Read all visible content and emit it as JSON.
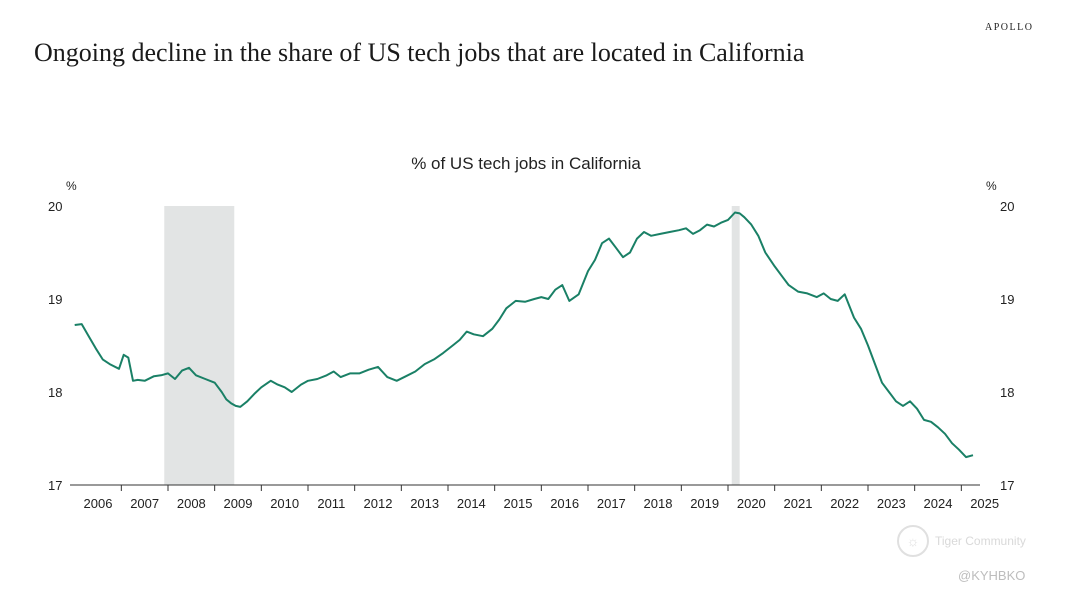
{
  "brand": "APOLLO",
  "headline": "Ongoing decline in the share of US tech jobs that are located in California",
  "watermark": "Tiger Community",
  "handle": "@KYHBKO",
  "chart_data": {
    "type": "line",
    "title": "% of US tech jobs in California",
    "ylabel_left": "%",
    "ylabel_right": "%",
    "ylim": [
      17,
      20
    ],
    "yticks": [
      17,
      18,
      19,
      20
    ],
    "xlim": [
      2005.9,
      2025.4
    ],
    "xtick_labels": [
      "2006",
      "2007",
      "2008",
      "2009",
      "2010",
      "2011",
      "2012",
      "2013",
      "2014",
      "2015",
      "2016",
      "2017",
      "2018",
      "2019",
      "2020",
      "2021",
      "2022",
      "2023",
      "2024",
      "2025"
    ],
    "grid": false,
    "line_color": "#1a8066",
    "recession_color": "#e2e4e4",
    "recessions": [
      [
        2007.92,
        2009.42
      ],
      [
        2020.08,
        2020.25
      ]
    ],
    "series": [
      {
        "x": [
          2006.0,
          2006.15,
          2006.3,
          2006.45,
          2006.6,
          2006.75,
          2006.95,
          2007.05,
          2007.15,
          2007.25,
          2007.35,
          2007.5,
          2007.7,
          2007.85,
          2008.0,
          2008.15,
          2008.3,
          2008.45,
          2008.6,
          2008.8,
          2009.0,
          2009.15,
          2009.25,
          2009.35,
          2009.45,
          2009.55,
          2009.7,
          2009.85,
          2010.0,
          2010.2,
          2010.35,
          2010.5,
          2010.65,
          2010.85,
          2011.0,
          2011.2,
          2011.4,
          2011.55,
          2011.7,
          2011.9,
          2012.1,
          2012.3,
          2012.5,
          2012.7,
          2012.9,
          2013.1,
          2013.3,
          2013.5,
          2013.7,
          2013.9,
          2014.1,
          2014.25,
          2014.4,
          2014.55,
          2014.75,
          2014.95,
          2015.1,
          2015.25,
          2015.45,
          2015.65,
          2015.85,
          2016.0,
          2016.15,
          2016.3,
          2016.45,
          2016.6,
          2016.8,
          2017.0,
          2017.15,
          2017.3,
          2017.45,
          2017.6,
          2017.75,
          2017.9,
          2018.05,
          2018.2,
          2018.35,
          2018.55,
          2018.75,
          2018.95,
          2019.1,
          2019.25,
          2019.4,
          2019.55,
          2019.7,
          2019.85,
          2020.0,
          2020.15,
          2020.25,
          2020.35,
          2020.5,
          2020.65,
          2020.8,
          2021.0,
          2021.15,
          2021.3,
          2021.5,
          2021.7,
          2021.9,
          2022.05,
          2022.2,
          2022.35,
          2022.5,
          2022.7,
          2022.85,
          2023.0,
          2023.15,
          2023.3,
          2023.45,
          2023.6,
          2023.75,
          2023.9,
          2024.05,
          2024.2,
          2024.35,
          2024.5,
          2024.65,
          2024.8,
          2024.95,
          2025.1,
          2025.25
        ],
        "y": [
          18.72,
          18.73,
          18.6,
          18.47,
          18.35,
          18.3,
          18.25,
          18.4,
          18.37,
          18.12,
          18.13,
          18.12,
          18.17,
          18.18,
          18.2,
          18.14,
          18.23,
          18.26,
          18.18,
          18.14,
          18.1,
          18.0,
          17.92,
          17.88,
          17.85,
          17.84,
          17.9,
          17.98,
          18.05,
          18.12,
          18.08,
          18.05,
          18.0,
          18.08,
          18.12,
          18.14,
          18.18,
          18.22,
          18.16,
          18.2,
          18.2,
          18.24,
          18.27,
          18.16,
          18.12,
          18.17,
          18.22,
          18.3,
          18.35,
          18.42,
          18.5,
          18.56,
          18.65,
          18.62,
          18.6,
          18.68,
          18.78,
          18.9,
          18.98,
          18.97,
          19.0,
          19.02,
          19.0,
          19.1,
          19.15,
          18.98,
          19.05,
          19.3,
          19.42,
          19.6,
          19.65,
          19.55,
          19.45,
          19.5,
          19.65,
          19.72,
          19.68,
          19.7,
          19.72,
          19.74,
          19.76,
          19.7,
          19.74,
          19.8,
          19.78,
          19.82,
          19.85,
          19.93,
          19.92,
          19.88,
          19.8,
          19.68,
          19.5,
          19.35,
          19.25,
          19.15,
          19.08,
          19.06,
          19.02,
          19.06,
          19.0,
          18.98,
          19.05,
          18.8,
          18.68,
          18.5,
          18.3,
          18.1,
          18.0,
          17.9,
          17.85,
          17.9,
          17.82,
          17.7,
          17.68,
          17.62,
          17.55,
          17.45,
          17.38,
          17.3,
          17.32
        ]
      }
    ]
  }
}
